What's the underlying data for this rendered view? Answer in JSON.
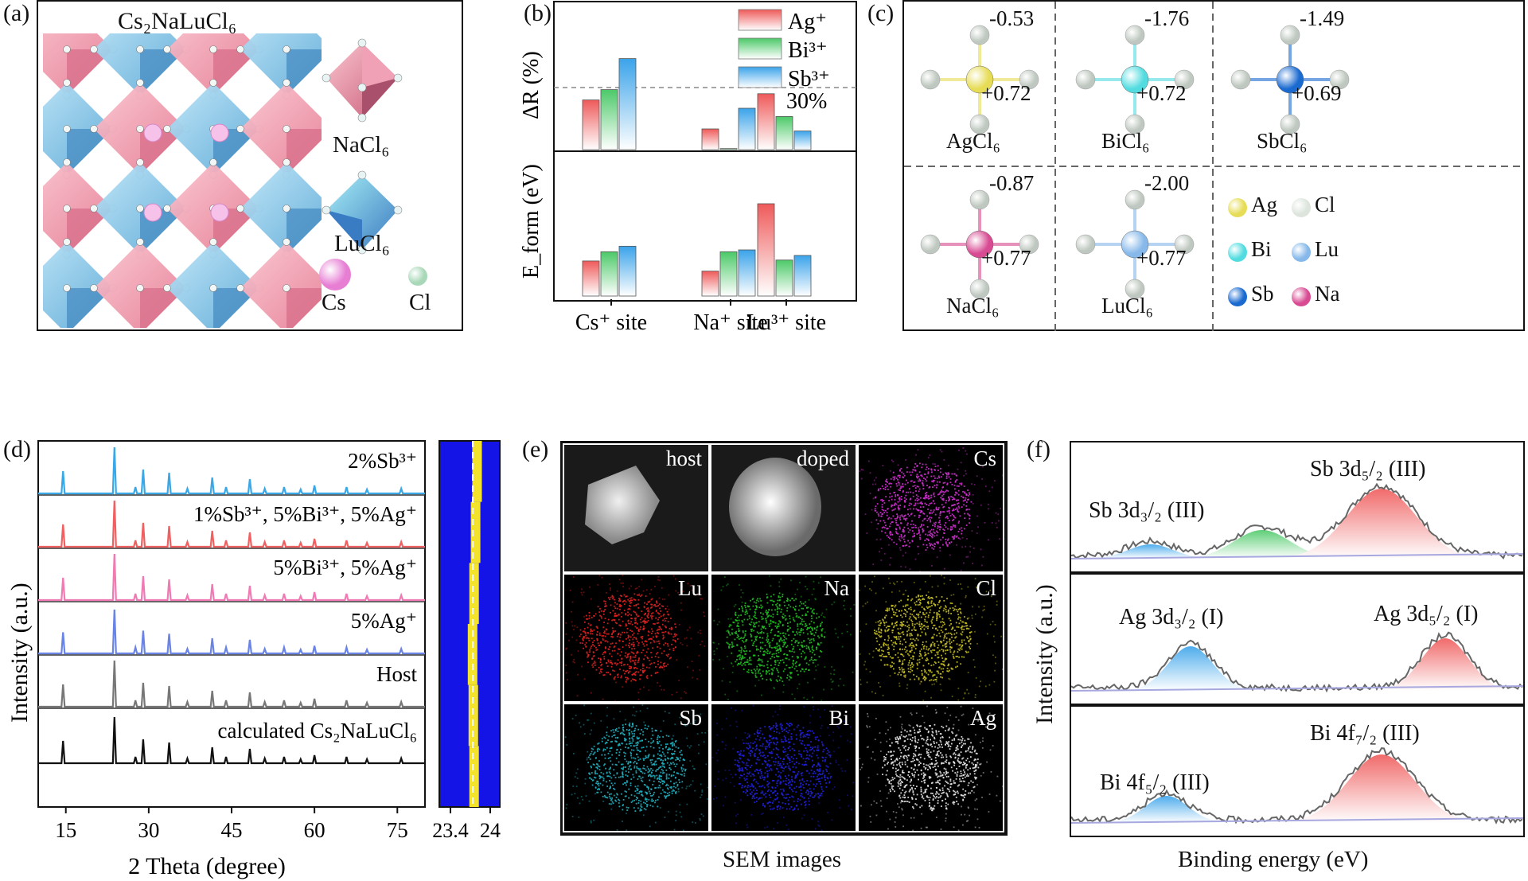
{
  "figure": {
    "panel_labels": [
      "(a)",
      "(b)",
      "(c)",
      "(d)",
      "(e)",
      "(f)"
    ]
  },
  "panel_a": {
    "title": "Cs₂NaLuCl₆",
    "legend": [
      {
        "name": "NaCl₆",
        "color": "#f4a3b4"
      },
      {
        "name": "LuCl₆",
        "color": "#7ec3e6"
      },
      {
        "name": "Cs",
        "color": "#f4b6e4"
      },
      {
        "name": "Cl",
        "color": "#e2efe2"
      }
    ],
    "colors": {
      "pink": "#f4a3b4",
      "blue": "#9dd2ee"
    }
  },
  "panel_b": {
    "chart_data": {
      "type": "bar",
      "categories": [
        "Cs⁺ site",
        "Na⁺ site",
        "Lu³⁺ site"
      ],
      "top": {
        "ylabel": "ΔR (%)",
        "reference_label": "30%",
        "series": [
          {
            "name": "Ag⁺",
            "color": "#ef5a5a",
            "values": [
              24,
              10,
              27
            ]
          },
          {
            "name": "Bi³⁺",
            "color": "#4cc968",
            "values": [
              29,
              0.5,
              16
            ]
          },
          {
            "name": "Sb³⁺",
            "color": "#3aa3ea",
            "values": [
              44,
              20,
              9
            ]
          }
        ]
      },
      "bottom": {
        "ylabel": "E_form (eV)",
        "series": [
          {
            "name": "Ag⁺",
            "values": [
              0.38,
              0.27,
              1.0
            ]
          },
          {
            "name": "Bi³⁺",
            "values": [
              0.48,
              0.48,
              0.39
            ]
          },
          {
            "name": "Sb³⁺",
            "values": [
              0.54,
              0.5,
              0.44
            ]
          }
        ]
      }
    },
    "legend": [
      "Ag⁺",
      "Bi³⁺",
      "Sb³⁺"
    ]
  },
  "panel_c": {
    "molecules": [
      {
        "name": "AgCl₆",
        "center": "Ag",
        "top_charge": "-0.53",
        "right_charge": "+0.72",
        "color": "#e6dc55"
      },
      {
        "name": "BiCl₆",
        "center": "Bi",
        "top_charge": "-1.76",
        "right_charge": "+0.72",
        "color": "#52dce0"
      },
      {
        "name": "SbCl₆",
        "center": "Sb",
        "top_charge": "-1.49",
        "right_charge": "+0.69",
        "color": "#1a6ad0"
      },
      {
        "name": "NaCl₆",
        "center": "Na",
        "top_charge": "-0.87",
        "right_charge": "+0.77",
        "color": "#d84a92"
      },
      {
        "name": "LuCl₆",
        "center": "Lu",
        "top_charge": "-2.00",
        "right_charge": "+0.77",
        "color": "#86b8ea"
      }
    ],
    "legend": [
      {
        "name": "Ag",
        "color": "#e6dc55"
      },
      {
        "name": "Cl",
        "color": "#dce4dc"
      },
      {
        "name": "Bi",
        "color": "#52dce0"
      },
      {
        "name": "Lu",
        "color": "#86b8ea"
      },
      {
        "name": "Sb",
        "color": "#1a6ad0"
      },
      {
        "name": "Na",
        "color": "#d84a92"
      }
    ]
  },
  "panel_d": {
    "chart_data": {
      "type": "line",
      "xlabel": "2 Theta (degree)",
      "ylabel": "Intensity (a.u.)",
      "xlim": [
        10,
        80
      ],
      "xticks": [
        15,
        30,
        45,
        60,
        75
      ],
      "peaks": [
        14.5,
        23.8,
        27.6,
        29.0,
        33.7,
        37.0,
        41.5,
        44.0,
        48.3,
        51.0,
        54.5,
        57.5,
        60.0,
        65.8,
        69.5,
        75.7
      ],
      "series": [
        {
          "name": "2%Sb³⁺",
          "color": "#3aa8e6"
        },
        {
          "name": "1%Sb³⁺, 5%Bi³⁺, 5%Ag⁺",
          "color": "#f06060"
        },
        {
          "name": "5%Bi³⁺, 5%Ag⁺",
          "color": "#f07ab4"
        },
        {
          "name": "5%Ag⁺",
          "color": "#6a84e6"
        },
        {
          "name": "Host",
          "color": "#777777"
        },
        {
          "name": "calculated Cs₂NaLuCl₆",
          "color": "#111111"
        }
      ],
      "zoom": {
        "xticks": [
          "23.4",
          "24"
        ],
        "peak_positions": [
          23.8,
          23.78,
          23.76,
          23.74,
          23.75,
          23.76
        ],
        "bg_color": "#1414e6",
        "peak_color": "#ffee22"
      }
    }
  },
  "panel_e": {
    "caption": "SEM images",
    "cells": [
      {
        "label": "host",
        "color": "#cfcfcf"
      },
      {
        "label": "doped",
        "color": "#e0e0e0"
      },
      {
        "label": "Cs",
        "color": "#d030d0"
      },
      {
        "label": "Lu",
        "color": "#e02020"
      },
      {
        "label": "Na",
        "color": "#20c020"
      },
      {
        "label": "Cl",
        "color": "#c8c020"
      },
      {
        "label": "Sb",
        "color": "#20b0c0"
      },
      {
        "label": "Bi",
        "color": "#2020e0"
      },
      {
        "label": "Ag",
        "color": "#e8e8e8"
      }
    ]
  },
  "panel_f": {
    "xlabel": "Binding energy (eV)",
    "ylabel": "Intensity (a.u.)",
    "spectra": [
      {
        "left_label": "Sb 3d₃/₂ (III)",
        "right_label": "Sb 3d₅/₂ (III)"
      },
      {
        "left_label": "Ag 3d₃/₂ (I)",
        "right_label": "Ag 3d₅/₂ (I)"
      },
      {
        "left_label": "Bi 4f₅/₂ (III)",
        "right_label": "Bi 4f₇/₂ (III)"
      }
    ]
  }
}
